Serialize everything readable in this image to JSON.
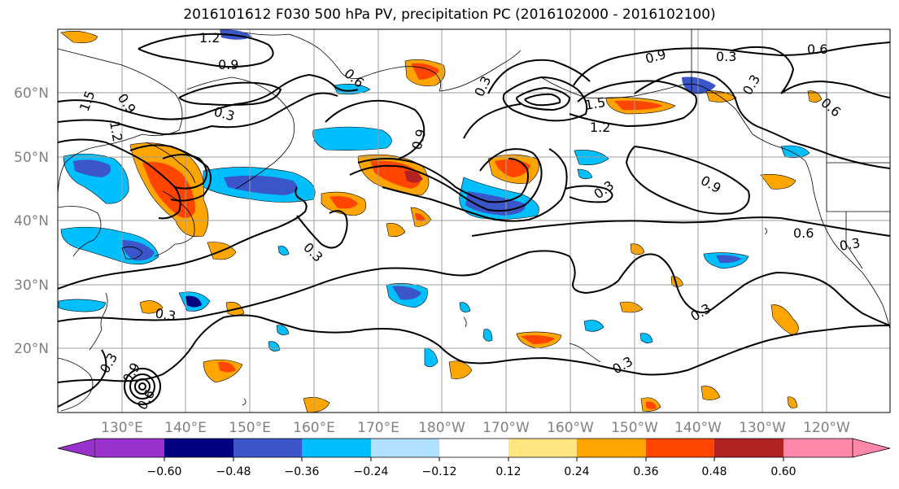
{
  "title": "2016101612 F030 500 hPa PV, precipitation PC (2016102000 - 2016102100)",
  "map": {
    "lat_labels": [
      "60°N",
      "50°N",
      "40°N",
      "30°N",
      "20°N"
    ],
    "lon_labels": [
      "130°E",
      "140°E",
      "150°E",
      "160°E",
      "170°E",
      "180°W",
      "170°W",
      "160°W",
      "150°W",
      "140°W",
      "130°W",
      "120°W"
    ],
    "contour_labels": [
      "1.2",
      "0.9",
      "0.6",
      "0.3",
      "0.9",
      "1.2",
      "1.5",
      "0.3",
      "0.9",
      "0.3",
      "0.9",
      "1.5",
      "1.2",
      "0.9",
      "0.6",
      "0.3",
      "0.3",
      "0.6",
      "0.3",
      "0.3",
      "0.3",
      "0.3",
      "0.3",
      "0.6",
      "0.9",
      "0.6",
      "0.3"
    ],
    "colors": {
      "contour": "#000000",
      "grid": "#9e9e9e",
      "coast": "#000000"
    }
  },
  "colorbar": {
    "ticks": [
      "−0.60",
      "−0.48",
      "−0.36",
      "−0.24",
      "−0.12",
      "0.12",
      "0.24",
      "0.36",
      "0.48",
      "0.60"
    ],
    "colors": [
      "#9932cc",
      "#000080",
      "#3a56c9",
      "#00bfff",
      "#b0e0ff",
      "#ffffff",
      "#ffe680",
      "#ffa500",
      "#ff4500",
      "#b22222",
      "#ff88aa"
    ]
  }
}
